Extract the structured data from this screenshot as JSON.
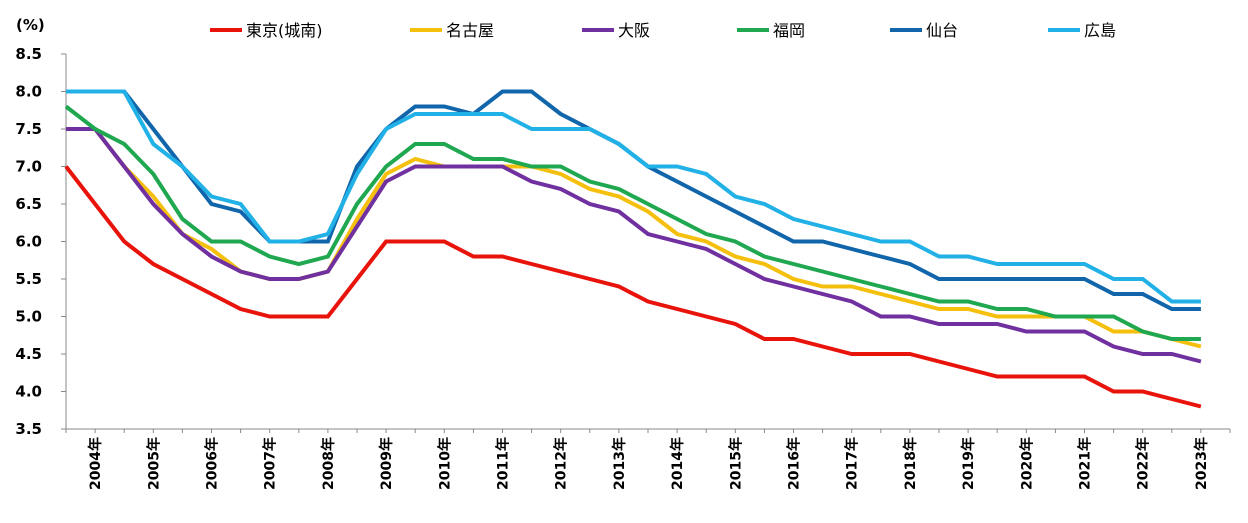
{
  "chart_data": {
    "type": "line",
    "ylabel": "(%)",
    "ylim": [
      3.5,
      8.5
    ],
    "yticks": [
      "3.5",
      "4.0",
      "4.5",
      "5.0",
      "5.5",
      "6.0",
      "6.5",
      "7.0",
      "7.5",
      "8.0",
      "8.5"
    ],
    "xlabels": [
      "2004年",
      "2005年",
      "2006年",
      "2007年",
      "2008年",
      "2009年",
      "2010年",
      "2011年",
      "2012年",
      "2013年",
      "2014年",
      "2015年",
      "2016年",
      "2017年",
      "2018年",
      "2019年",
      "2020年",
      "2021年",
      "2022年",
      "2023年"
    ],
    "x": [
      "2004-04",
      "2004-10",
      "2005-04",
      "2005-10",
      "2006-04",
      "2006-10",
      "2007-04",
      "2007-10",
      "2008-04",
      "2008-10",
      "2009-04",
      "2009-10",
      "2010-04",
      "2010-10",
      "2011-04",
      "2011-10",
      "2012-04",
      "2012-10",
      "2013-04",
      "2013-10",
      "2014-04",
      "2014-10",
      "2015-04",
      "2015-10",
      "2016-04",
      "2016-10",
      "2017-04",
      "2017-10",
      "2018-04",
      "2018-10",
      "2019-04",
      "2019-10",
      "2020-04",
      "2020-10",
      "2021-04",
      "2021-10",
      "2022-04",
      "2022-10",
      "2023-04",
      "2023-10",
      "2024-04"
    ],
    "legend_position": "top",
    "grid": false,
    "series": [
      {
        "name": "東京(城南)",
        "color": "#e8140c",
        "values": [
          7.0,
          6.5,
          6.0,
          5.7,
          5.5,
          5.3,
          5.1,
          5.0,
          5.0,
          5.0,
          5.5,
          6.0,
          6.0,
          6.0,
          5.8,
          5.8,
          5.7,
          5.6,
          5.5,
          5.4,
          5.2,
          5.1,
          5.0,
          4.9,
          4.7,
          4.7,
          4.6,
          4.5,
          4.5,
          4.5,
          4.4,
          4.3,
          4.2,
          4.2,
          4.2,
          4.2,
          4.0,
          4.0,
          3.9,
          3.8,
          null
        ]
      },
      {
        "name": "名古屋",
        "color": "#f5bf0e",
        "values": [
          7.5,
          7.5,
          7.0,
          6.6,
          6.1,
          5.9,
          5.6,
          5.5,
          5.5,
          5.6,
          6.3,
          6.9,
          7.1,
          7.0,
          7.0,
          7.0,
          7.0,
          6.9,
          6.7,
          6.6,
          6.4,
          6.1,
          6.0,
          5.8,
          5.7,
          5.5,
          5.4,
          5.4,
          5.3,
          5.2,
          5.1,
          5.1,
          5.0,
          5.0,
          5.0,
          5.0,
          4.8,
          4.8,
          4.7,
          4.6,
          null
        ]
      },
      {
        "name": "大阪",
        "color": "#7030a0",
        "values": [
          7.5,
          7.5,
          7.0,
          6.5,
          6.1,
          5.8,
          5.6,
          5.5,
          5.5,
          5.6,
          6.2,
          6.8,
          7.0,
          7.0,
          7.0,
          7.0,
          6.8,
          6.7,
          6.5,
          6.4,
          6.1,
          6.0,
          5.9,
          5.7,
          5.5,
          5.4,
          5.3,
          5.2,
          5.0,
          5.0,
          4.9,
          4.9,
          4.9,
          4.8,
          4.8,
          4.8,
          4.6,
          4.5,
          4.5,
          4.4,
          null
        ]
      },
      {
        "name": "福岡",
        "color": "#1fa84f",
        "values": [
          7.8,
          7.5,
          7.3,
          6.9,
          6.3,
          6.0,
          6.0,
          5.8,
          5.7,
          5.8,
          6.5,
          7.0,
          7.3,
          7.3,
          7.1,
          7.1,
          7.0,
          7.0,
          6.8,
          6.7,
          6.5,
          6.3,
          6.1,
          6.0,
          5.8,
          5.7,
          5.6,
          5.5,
          5.4,
          5.3,
          5.2,
          5.2,
          5.1,
          5.1,
          5.0,
          5.0,
          5.0,
          4.8,
          4.7,
          4.7,
          null
        ]
      },
      {
        "name": "仙台",
        "color": "#1065ab",
        "values": [
          8.0,
          8.0,
          8.0,
          7.5,
          7.0,
          6.5,
          6.4,
          6.0,
          6.0,
          6.0,
          7.0,
          7.5,
          7.8,
          7.8,
          7.7,
          8.0,
          8.0,
          7.7,
          7.5,
          7.3,
          7.0,
          6.8,
          6.6,
          6.4,
          6.2,
          6.0,
          6.0,
          5.9,
          5.8,
          5.7,
          5.5,
          5.5,
          5.5,
          5.5,
          5.5,
          5.5,
          5.3,
          5.3,
          5.1,
          5.1,
          null
        ]
      },
      {
        "name": "広島",
        "color": "#22b1e6",
        "values": [
          8.0,
          8.0,
          8.0,
          7.3,
          7.0,
          6.6,
          6.5,
          6.0,
          6.0,
          6.1,
          6.9,
          7.5,
          7.7,
          7.7,
          7.7,
          7.7,
          7.5,
          7.5,
          7.5,
          7.3,
          7.0,
          7.0,
          6.9,
          6.6,
          6.5,
          6.3,
          6.2,
          6.1,
          6.0,
          6.0,
          5.8,
          5.8,
          5.7,
          5.7,
          5.7,
          5.7,
          5.5,
          5.5,
          5.2,
          5.2,
          null
        ]
      }
    ]
  }
}
